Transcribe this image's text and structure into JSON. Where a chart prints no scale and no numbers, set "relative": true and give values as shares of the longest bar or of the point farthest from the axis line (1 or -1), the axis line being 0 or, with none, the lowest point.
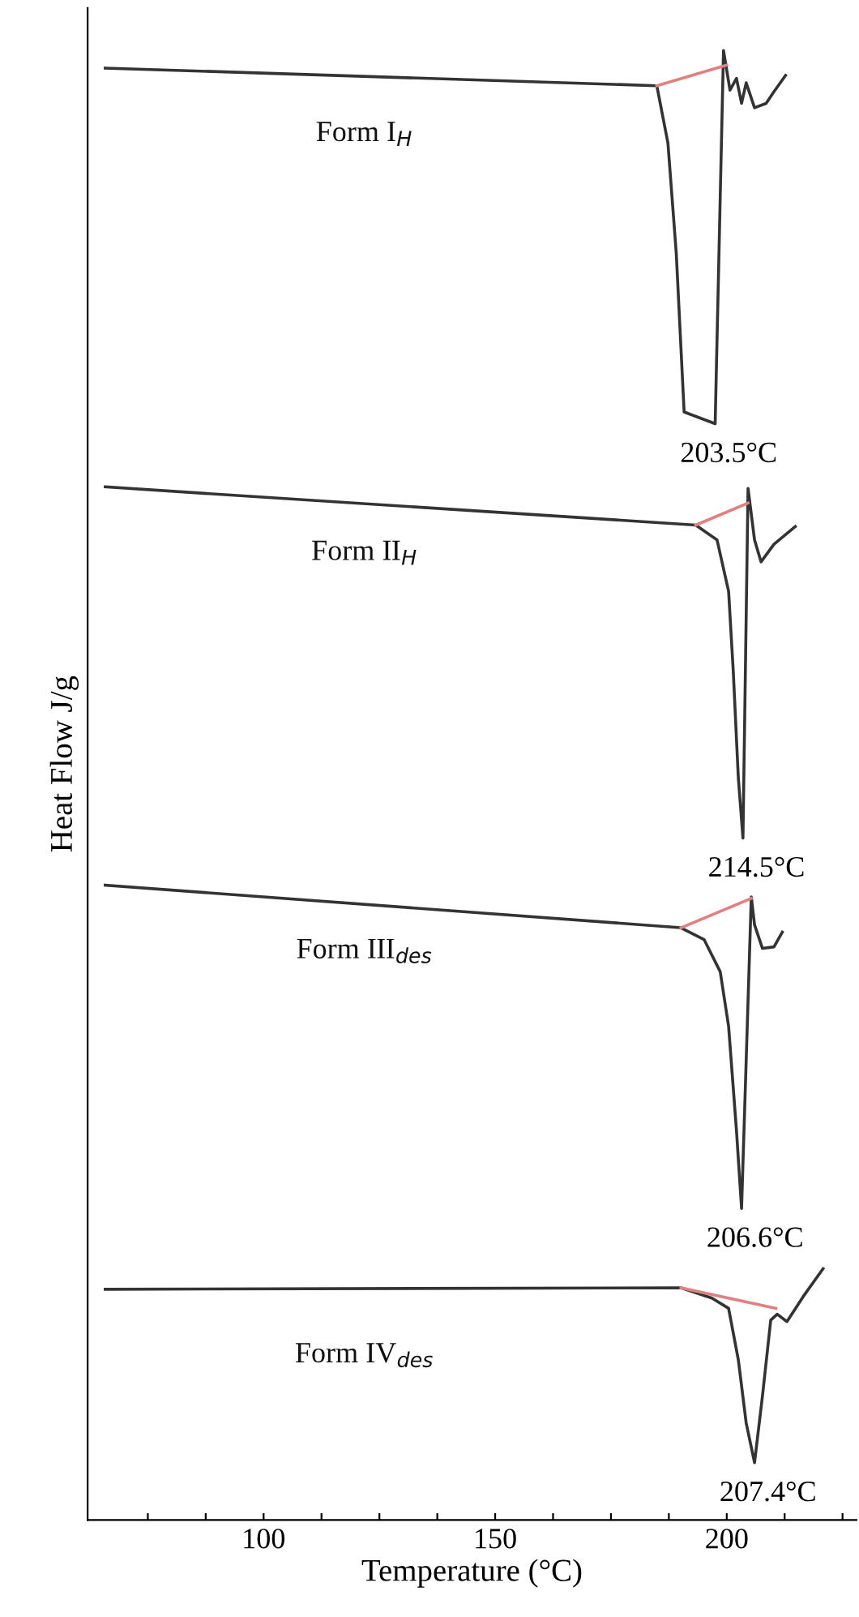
{
  "chart_data": {
    "type": "line",
    "relative": true,
    "xlabel": "Temperature (°C)",
    "ylabel": "Heat Flow J/g",
    "xlim": [
      62,
      228
    ],
    "xticks": [
      {
        "value": 75,
        "label": null
      },
      {
        "value": 87.5,
        "label": null
      },
      100,
      {
        "value": 112.5,
        "label": null
      },
      {
        "value": 125,
        "label": null
      },
      {
        "value": 137.5,
        "label": null
      },
      150,
      {
        "value": 162.5,
        "label": null
      },
      {
        "value": 175,
        "label": null
      },
      {
        "value": 187.5,
        "label": null
      },
      200,
      {
        "value": 212.5,
        "label": null
      },
      {
        "value": 225,
        "label": null
      }
    ],
    "grid": false,
    "legend": false,
    "marker": "none",
    "line_style": "solid",
    "series": [
      {
        "name": "Form I$_{H}$",
        "color": "#333333",
        "x": [
          65.8,
          184.9,
          187.3,
          189.1,
          190.8,
          197.5,
          199.3,
          200.7,
          202.1,
          203.2,
          204.2,
          206.0,
          208.5,
          210.2,
          212.7
        ],
        "values": [
          0.988,
          0.976,
          0.937,
          0.862,
          0.754,
          0.746,
          1.0,
          0.973,
          0.981,
          0.964,
          0.978,
          0.961,
          0.964,
          0.972,
          0.983
        ]
      },
      {
        "name": "Form II$_{H}$",
        "color": "#333333",
        "x": [
          65.8,
          193.3,
          197.9,
          200.4,
          201.4,
          202.5,
          203.5,
          204.6,
          206.0,
          207.4,
          210.2,
          214.8
        ],
        "values": [
          0.703,
          0.677,
          0.667,
          0.632,
          0.578,
          0.505,
          0.464,
          0.702,
          0.667,
          0.652,
          0.664,
          0.676
        ]
      },
      {
        "name": "Form III$_{des}$",
        "color": "#333333",
        "x": [
          65.8,
          190.1,
          195.1,
          198.6,
          200.4,
          202.1,
          203.2,
          205.3,
          206.0,
          207.7,
          210.2,
          212.0
        ],
        "values": [
          0.432,
          0.403,
          0.395,
          0.373,
          0.336,
          0.265,
          0.212,
          0.424,
          0.405,
          0.389,
          0.39,
          0.4
        ]
      },
      {
        "name": "Form IV$_{des}$",
        "color": "#333333",
        "x": [
          65.8,
          190.1,
          196.8,
          200.4,
          202.5,
          204.2,
          206.0,
          207.7,
          209.5,
          210.9,
          213.0,
          216.5,
          220.8
        ],
        "values": [
          0.157,
          0.158,
          0.151,
          0.144,
          0.109,
          0.066,
          0.039,
          0.084,
          0.136,
          0.14,
          0.135,
          0.152,
          0.171
        ]
      },
      {
        "color": "#e08080",
        "x": [
          184.9,
          200.0
        ],
        "values": [
          0.976,
          0.99
        ]
      },
      {
        "color": "#e08080",
        "x": [
          193.3,
          204.6
        ],
        "values": [
          0.677,
          0.692
        ]
      },
      {
        "color": "#e08080",
        "x": [
          190.1,
          205.3
        ],
        "values": [
          0.403,
          0.423
        ]
      },
      {
        "color": "#e08080",
        "x": [
          190.1,
          210.6
        ],
        "values": [
          0.158,
          0.144
        ]
      }
    ],
    "annotations": [
      {
        "text": "203.5°C",
        "x": 197.5,
        "y": 0.746
      },
      {
        "text": "214.5°C",
        "x": 203.5,
        "y": 0.464
      },
      {
        "text": "206.6°C",
        "x": 203.2,
        "y": 0.212
      },
      {
        "text": "207.4°C",
        "x": 206.0,
        "y": 0.039
      }
    ]
  }
}
